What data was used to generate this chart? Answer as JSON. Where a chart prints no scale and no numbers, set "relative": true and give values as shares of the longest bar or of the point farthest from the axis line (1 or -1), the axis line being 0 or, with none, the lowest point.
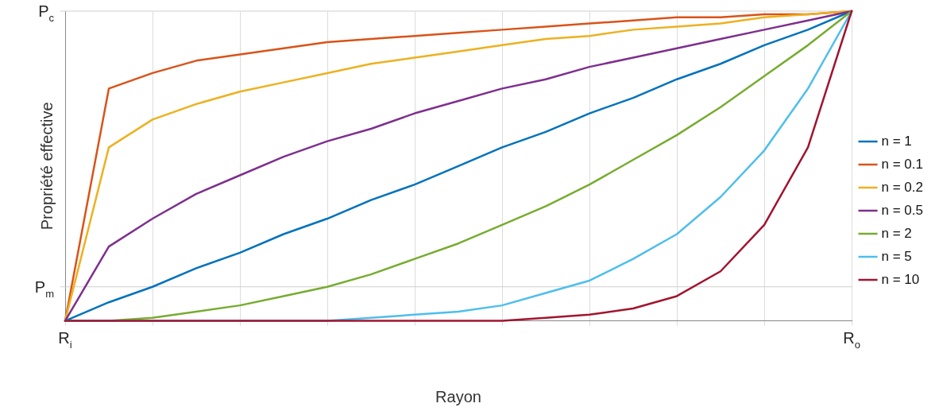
{
  "chart_data": {
    "type": "line",
    "xlabel": "Rayon",
    "ylabel": "Propriété effective",
    "relative": true,
    "categories": [
      "R$_{i}$",
      null,
      null,
      null,
      null,
      null,
      null,
      null,
      null,
      null,
      null,
      null,
      null,
      null,
      null,
      null,
      null,
      null,
      "R$_{o}$"
    ],
    "ref_lines": [
      {
        "axis": "y",
        "value": 0.11,
        "label": "P$_{m}$"
      },
      {
        "axis": "y",
        "value": 1,
        "label": "P$_{c}$"
      }
    ],
    "grid": "x",
    "legend": "right",
    "marker": "none",
    "line_style": "solid",
    "series": [
      {
        "name": "n = 1",
        "color": "#0072bd",
        "values": [
          0,
          0.06,
          0.11,
          0.17,
          0.22,
          0.28,
          0.33,
          0.39,
          0.44,
          0.5,
          0.56,
          0.61,
          0.67,
          0.72,
          0.78,
          0.83,
          0.89,
          0.94,
          1
        ]
      },
      {
        "name": "n = 0.1",
        "color": "#d95319",
        "values": [
          0,
          0.75,
          0.8,
          0.84,
          0.86,
          0.88,
          0.9,
          0.91,
          0.92,
          0.93,
          0.94,
          0.95,
          0.96,
          0.97,
          0.98,
          0.98,
          0.99,
          0.99,
          1
        ]
      },
      {
        "name": "n = 0.2",
        "color": "#edb120",
        "values": [
          0,
          0.56,
          0.65,
          0.7,
          0.74,
          0.77,
          0.8,
          0.83,
          0.85,
          0.87,
          0.89,
          0.91,
          0.92,
          0.94,
          0.95,
          0.96,
          0.98,
          0.99,
          1
        ]
      },
      {
        "name": "n = 0.5",
        "color": "#7e2f8e",
        "values": [
          0,
          0.24,
          0.33,
          0.41,
          0.47,
          0.53,
          0.58,
          0.62,
          0.67,
          0.71,
          0.75,
          0.78,
          0.82,
          0.85,
          0.88,
          0.91,
          0.94,
          0.97,
          1
        ]
      },
      {
        "name": "n = 2",
        "color": "#77ac30",
        "values": [
          0,
          0,
          0.01,
          0.03,
          0.05,
          0.08,
          0.11,
          0.15,
          0.2,
          0.25,
          0.31,
          0.37,
          0.44,
          0.52,
          0.6,
          0.69,
          0.79,
          0.89,
          1
        ]
      },
      {
        "name": "n = 5",
        "color": "#4dbeee",
        "values": [
          0,
          0,
          0,
          0,
          0,
          0,
          0,
          0.01,
          0.02,
          0.03,
          0.05,
          0.09,
          0.13,
          0.2,
          0.28,
          0.4,
          0.55,
          0.75,
          1
        ]
      },
      {
        "name": "n = 10",
        "color": "#a2142f",
        "values": [
          0,
          0,
          0,
          0,
          0,
          0,
          0,
          0,
          0,
          0,
          0,
          0.01,
          0.02,
          0.04,
          0.08,
          0.16,
          0.31,
          0.56,
          1
        ]
      }
    ]
  }
}
